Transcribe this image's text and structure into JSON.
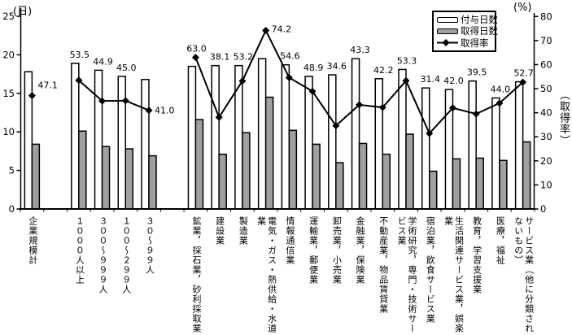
{
  "chart_data": {
    "type": "bar",
    "subtype": "grouped-bars-with-line-on-secondary-axis",
    "title": "",
    "categories": [
      "企業規模計",
      "",
      "１０００人以上",
      "３００～９９９人",
      "１００～２９９人",
      "３０～９９人",
      "",
      "鉱業，採石業，砂利採取業",
      "建設業",
      "製造業",
      "電気・ガス・熱供給・水道業",
      "情報通信業",
      "運輸業，郵便業",
      "卸売業，小売業",
      "金融業，保険業",
      "不動産業，物品賃貸業",
      "学術研究，専門・技術サービス業",
      "宿泊業，飲食サービス業",
      "生活関連サービス業，娯楽業",
      "教育，学習支援業",
      "医療，福祉",
      "サービス業（他に分類されないもの）"
    ],
    "series": [
      {
        "name": "付与日数",
        "type": "bar",
        "axis": "left",
        "fill": "#ffffff",
        "stroke": "#000000",
        "values": [
          17.8,
          null,
          18.9,
          18.0,
          17.2,
          16.8,
          null,
          18.5,
          18.6,
          18.6,
          19.5,
          18.7,
          17.2,
          17.4,
          19.5,
          16.9,
          18.1,
          15.7,
          15.5,
          16.6,
          14.4,
          16.5
        ]
      },
      {
        "name": "取得日数",
        "type": "bar",
        "axis": "left",
        "fill": "#a0a0a0",
        "stroke": "#000000",
        "values": [
          8.4,
          null,
          10.1,
          8.1,
          7.8,
          6.9,
          null,
          11.6,
          7.1,
          9.9,
          14.5,
          10.2,
          8.4,
          6.0,
          8.5,
          7.1,
          9.7,
          4.9,
          6.5,
          6.6,
          6.3,
          8.7
        ]
      },
      {
        "name": "取得率",
        "type": "line",
        "axis": "right",
        "stroke": "#000000",
        "marker": "diamond",
        "values": [
          47.1,
          null,
          53.5,
          44.9,
          45.0,
          41.0,
          null,
          63.0,
          38.1,
          53.2,
          74.2,
          54.6,
          48.9,
          34.6,
          43.3,
          42.2,
          53.3,
          31.4,
          42.0,
          39.5,
          44.0,
          52.7
        ]
      }
    ],
    "left_axis": {
      "unit": "(日)",
      "min": 0,
      "max": 25,
      "ticks": [
        0,
        5,
        10,
        15,
        20,
        25
      ]
    },
    "right_axis": {
      "unit": "(%)",
      "axis_label": "（取得率）",
      "min": 0,
      "max": 80,
      "ticks": [
        0,
        10,
        20,
        30,
        40,
        50,
        60,
        70,
        80
      ]
    },
    "legend_position": "top-right",
    "grid": "off",
    "data_labels_series": "取得率",
    "colors": {
      "bar_granted": "#ffffff",
      "bar_taken": "#a0a0a0",
      "line": "#000000",
      "axis": "#000000",
      "text": "#000000",
      "background": "#ffffff"
    }
  }
}
